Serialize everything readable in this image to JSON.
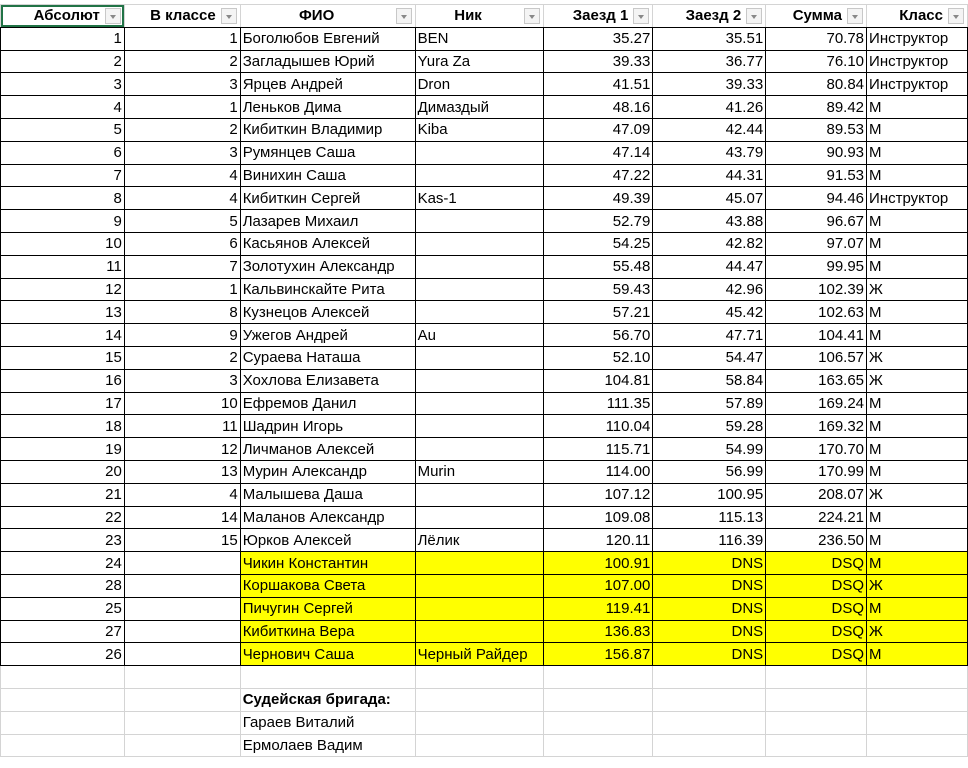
{
  "headers": [
    "Абсолют",
    "В классе",
    "ФИО",
    "Ник",
    "Заезд 1",
    "Заезд 2",
    "Сумма",
    "Класс"
  ],
  "rows": [
    [
      "1",
      "1",
      "Боголюбов Евгений",
      "BEN",
      "35.27",
      "35.51",
      "70.78",
      "Инструктор"
    ],
    [
      "2",
      "2",
      "Загладышев Юрий",
      "Yura Za",
      "39.33",
      "36.77",
      "76.10",
      "Инструктор"
    ],
    [
      "3",
      "3",
      "Ярцев Андрей",
      "Dron",
      "41.51",
      "39.33",
      "80.84",
      "Инструктор"
    ],
    [
      "4",
      "1",
      "Леньков Дима",
      "Димаздый",
      "48.16",
      "41.26",
      "89.42",
      "М"
    ],
    [
      "5",
      "2",
      "Кибиткин Владимир",
      "Kiba",
      "47.09",
      "42.44",
      "89.53",
      "М"
    ],
    [
      "6",
      "3",
      "Румянцев Саша",
      "",
      "47.14",
      "43.79",
      "90.93",
      "М"
    ],
    [
      "7",
      "4",
      "Винихин Саша",
      "",
      "47.22",
      "44.31",
      "91.53",
      "М"
    ],
    [
      "8",
      "4",
      "Кибиткин Сергей",
      "Kas-1",
      "49.39",
      "45.07",
      "94.46",
      "Инструктор"
    ],
    [
      "9",
      "5",
      "Лазарев Михаил",
      "",
      "52.79",
      "43.88",
      "96.67",
      "М"
    ],
    [
      "10",
      "6",
      "Касьянов Алексей",
      "",
      "54.25",
      "42.82",
      "97.07",
      "М"
    ],
    [
      "11",
      "7",
      "Золотухин Александр",
      "",
      "55.48",
      "44.47",
      "99.95",
      "М"
    ],
    [
      "12",
      "1",
      "Кальвинскайте Рита",
      "",
      "59.43",
      "42.96",
      "102.39",
      "Ж"
    ],
    [
      "13",
      "8",
      "Кузнецов Алексей",
      "",
      "57.21",
      "45.42",
      "102.63",
      "М"
    ],
    [
      "14",
      "9",
      "Ужегов Андрей",
      "Au",
      "56.70",
      "47.71",
      "104.41",
      "М"
    ],
    [
      "15",
      "2",
      "Сураева Наташа",
      "",
      "52.10",
      "54.47",
      "106.57",
      "Ж"
    ],
    [
      "16",
      "3",
      "Хохлова Елизавета",
      "",
      "104.81",
      "58.84",
      "163.65",
      "Ж"
    ],
    [
      "17",
      "10",
      "Ефремов Данил",
      "",
      "111.35",
      "57.89",
      "169.24",
      "М"
    ],
    [
      "18",
      "11",
      "Шадрин Игорь",
      "",
      "110.04",
      "59.28",
      "169.32",
      "М"
    ],
    [
      "19",
      "12",
      "Личманов Алексей",
      "",
      "115.71",
      "54.99",
      "170.70",
      "М"
    ],
    [
      "20",
      "13",
      "Мурин Александр",
      "Murin",
      "114.00",
      "56.99",
      "170.99",
      "М"
    ],
    [
      "21",
      "4",
      "Малышева Даша",
      "",
      "107.12",
      "100.95",
      "208.07",
      "Ж"
    ],
    [
      "22",
      "14",
      "Маланов Александр",
      "",
      "109.08",
      "115.13",
      "224.21",
      "М"
    ],
    [
      "23",
      "15",
      "Юрков Алексей",
      "Лёлик",
      "120.11",
      "116.39",
      "236.50",
      "М"
    ],
    [
      "24",
      "",
      "Чикин Константин",
      "",
      "100.91",
      "DNS",
      "DSQ",
      "М"
    ],
    [
      "28",
      "",
      "Коршакова Света",
      "",
      "107.00",
      "DNS",
      "DSQ",
      "Ж"
    ],
    [
      "25",
      "",
      "Пичугин Сергей",
      "",
      "119.41",
      "DNS",
      "DSQ",
      "М"
    ],
    [
      "27",
      "",
      "Кибиткина Вера",
      "",
      "136.83",
      "DNS",
      "DSQ",
      "Ж"
    ],
    [
      "26",
      "",
      "Чернович Саша",
      "Черный Райдер",
      "156.87",
      "DNS",
      "DSQ",
      "М"
    ]
  ],
  "highlight_color": "#ffff00",
  "judges": {
    "title": "Судейская бригада:",
    "names": [
      "Гараев Виталий",
      "Ермолаев Вадим"
    ]
  }
}
